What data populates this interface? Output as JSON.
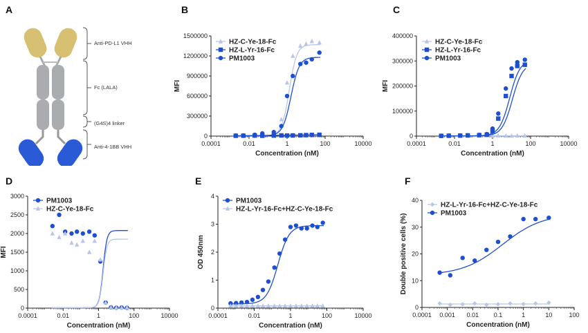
{
  "panel_letters": [
    "A",
    "B",
    "C",
    "D",
    "E",
    "F"
  ],
  "diagram": {
    "labels": [
      "Anti-PD-L1 VHH",
      "Fc (LALA)",
      "(G4S)4 linker",
      "Anti-4-1BB VHH"
    ],
    "colors": {
      "top": "#d8c073",
      "fc": "#a9adb0",
      "bottom": "#2a5ad6"
    }
  },
  "colors": {
    "light": "#b9c6e6",
    "dark": "#1f4fd1"
  },
  "chart_data": [
    {
      "panel": "B",
      "type": "line",
      "xscale": "log",
      "xlim": [
        0.0001,
        10000
      ],
      "ylim": [
        0,
        1500000
      ],
      "xticks": [
        0.0001,
        0.01,
        1,
        100,
        10000
      ],
      "xtick_labels": [
        "0.0001",
        "0.01",
        "1",
        "100",
        "10000"
      ],
      "yticks": [
        0,
        300000,
        600000,
        900000,
        1200000,
        1500000
      ],
      "ytick_labels": [
        "0",
        "300000",
        "600000",
        "900000",
        "1200000",
        "1500000"
      ],
      "xlabel": "Concentration (nM)",
      "ylabel": "MFI",
      "series": [
        {
          "name": "HZ-C-Ye-18-Fc",
          "marker": "triangle",
          "color": "light",
          "x": [
            0.002,
            0.005,
            0.02,
            0.05,
            0.2,
            0.5,
            1,
            2,
            5,
            10,
            20,
            50
          ],
          "y": [
            5000,
            8000,
            10000,
            20000,
            60000,
            250000,
            800000,
            1200000,
            1350000,
            1380000,
            1420000,
            1400000
          ],
          "fit": {
            "bottom": 5000,
            "top": 1370000,
            "ec50": 1.3,
            "hill": 2.2
          }
        },
        {
          "name": "HZ-L-Yr-16-Fc",
          "marker": "square",
          "color": "dark",
          "x": [
            0.002,
            0.005,
            0.02,
            0.05,
            0.2,
            0.5,
            1,
            2,
            5,
            10,
            20,
            50
          ],
          "y": [
            5000,
            6000,
            8000,
            5000,
            8000,
            10000,
            8000,
            10000,
            12000,
            15000,
            18000,
            20000
          ],
          "fit": null
        },
        {
          "name": "PM1003",
          "marker": "circle",
          "color": "dark",
          "x": [
            0.002,
            0.005,
            0.02,
            0.05,
            0.2,
            0.5,
            1,
            2,
            5,
            10,
            20,
            50
          ],
          "y": [
            8000,
            10000,
            20000,
            40000,
            60000,
            150000,
            600000,
            900000,
            1080000,
            1100000,
            1150000,
            1250000
          ],
          "fit": {
            "bottom": 5000,
            "top": 1180000,
            "ec50": 1.6,
            "hill": 2.0
          }
        }
      ],
      "legend_position": "top-left"
    },
    {
      "panel": "C",
      "type": "line",
      "xscale": "log",
      "xlim": [
        0.0001,
        10000
      ],
      "ylim": [
        0,
        400000
      ],
      "xticks": [
        0.0001,
        0.01,
        1,
        100,
        10000
      ],
      "xtick_labels": [
        "0.0001",
        "0.01",
        "1",
        "100",
        "10000"
      ],
      "yticks": [
        0,
        100000,
        200000,
        300000,
        400000
      ],
      "ytick_labels": [
        "0",
        "100000",
        "200000",
        "300000",
        "400000"
      ],
      "xlabel": "Concentration (nM)",
      "ylabel": "MFI",
      "series": [
        {
          "name": "HZ-C-Ye-18-Fc",
          "marker": "triangle",
          "color": "light",
          "x": [
            0.002,
            0.005,
            0.02,
            0.05,
            0.2,
            0.5,
            1,
            2,
            5,
            10,
            20,
            50
          ],
          "y": [
            1000,
            1000,
            1500,
            1000,
            1200,
            1500,
            1000,
            1500,
            1200,
            1000,
            1500,
            1200
          ],
          "fit": null
        },
        {
          "name": "HZ-L-Yr-16-Fc",
          "marker": "square",
          "color": "dark",
          "x": [
            0.002,
            0.005,
            0.02,
            0.05,
            0.2,
            0.5,
            1,
            2,
            5,
            10,
            20,
            50
          ],
          "y": [
            1000,
            1500,
            2000,
            3000,
            4000,
            6000,
            20000,
            70000,
            160000,
            240000,
            280000,
            285000
          ],
          "fit": {
            "bottom": 1000,
            "top": 290000,
            "ec50": 11,
            "hill": 1.6
          }
        },
        {
          "name": "PM1003",
          "marker": "circle",
          "color": "dark",
          "x": [
            0.002,
            0.005,
            0.02,
            0.05,
            0.2,
            0.5,
            1,
            2,
            5,
            10,
            20,
            50
          ],
          "y": [
            1000,
            1500,
            2000,
            3000,
            5000,
            8000,
            30000,
            90000,
            190000,
            270000,
            295000,
            305000
          ],
          "fit": {
            "bottom": 1000,
            "top": 305000,
            "ec50": 8,
            "hill": 1.6
          }
        }
      ],
      "legend_position": "top-left"
    },
    {
      "panel": "D",
      "type": "line",
      "xscale": "log",
      "xlim": [
        0.0001,
        10000
      ],
      "ylim": [
        0,
        3000
      ],
      "xticks": [
        0.0001,
        0.01,
        1,
        100,
        10000
      ],
      "xtick_labels": [
        "0.0001",
        "0.01",
        "1",
        "100",
        "10000"
      ],
      "yticks": [
        0,
        500,
        1000,
        1500,
        2000,
        2500,
        3000
      ],
      "ytick_labels": [
        "0",
        "500",
        "1000",
        "1500",
        "2000",
        "2500",
        "3000"
      ],
      "xlabel": "Concentration (nM)",
      "ylabel": "MFI",
      "series": [
        {
          "name": "PM1003",
          "marker": "circle",
          "color": "dark",
          "x": [
            0.0025,
            0.006,
            0.013,
            0.03,
            0.06,
            0.13,
            0.3,
            0.6,
            1.25,
            2.5,
            5,
            10,
            20,
            40
          ],
          "y": [
            2200,
            2500,
            2050,
            2000,
            2050,
            2000,
            2050,
            1950,
            1250,
            150,
            20,
            10,
            15,
            10
          ],
          "fit": {
            "bottom": 10,
            "top": 2080,
            "ec50": 1.8,
            "hill": 4
          }
        },
        {
          "name": "HZ-C-Ye-18-Fc",
          "marker": "triangle",
          "color": "light",
          "x": [
            0.0025,
            0.006,
            0.013,
            0.03,
            0.06,
            0.13,
            0.3,
            0.6,
            1.25,
            2.5,
            5,
            10,
            20,
            40
          ],
          "y": [
            2000,
            1900,
            2000,
            1750,
            1700,
            1800,
            1500,
            1800,
            1300,
            150,
            20,
            10,
            10,
            15
          ],
          "fit": {
            "bottom": 10,
            "top": 1850,
            "ec50": 1.8,
            "hill": 4
          }
        }
      ],
      "legend_position": "top-left"
    },
    {
      "panel": "E",
      "type": "line",
      "xscale": "log",
      "xlim": [
        0.0001,
        10000
      ],
      "ylim": [
        0,
        4
      ],
      "xticks": [
        0.0001,
        0.01,
        1,
        100,
        10000
      ],
      "xtick_labels": [
        "0.0001",
        "0.01",
        "1",
        "100",
        "10000"
      ],
      "yticks": [
        0,
        1,
        2,
        3,
        4
      ],
      "ytick_labels": [
        "0",
        "1",
        "2",
        "3",
        "4"
      ],
      "xlabel": "Concentration (nM)",
      "ylabel": "OD 450nm",
      "series": [
        {
          "name": "PM1003",
          "marker": "circle",
          "color": "dark",
          "x": [
            0.0005,
            0.001,
            0.002,
            0.004,
            0.008,
            0.016,
            0.03,
            0.06,
            0.13,
            0.25,
            0.5,
            1,
            2,
            4,
            8,
            16,
            30,
            60
          ],
          "y": [
            0.17,
            0.18,
            0.2,
            0.22,
            0.3,
            0.4,
            0.65,
            0.95,
            1.45,
            1.95,
            2.45,
            2.9,
            2.95,
            2.85,
            2.85,
            2.95,
            2.9,
            3.05
          ],
          "fit": {
            "bottom": 0.15,
            "top": 2.95,
            "ec50": 0.2,
            "hill": 1.4
          }
        },
        {
          "name": "HZ-L-Yr-16-Fc+HZ-C-Ye-18-Fc",
          "marker": "triangle",
          "color": "light",
          "x": [
            0.0005,
            0.001,
            0.002,
            0.004,
            0.008,
            0.016,
            0.03,
            0.06,
            0.13,
            0.25,
            0.5,
            1,
            2,
            4,
            8,
            16,
            30,
            60
          ],
          "y": [
            0.08,
            0.08,
            0.08,
            0.08,
            0.08,
            0.08,
            0.08,
            0.08,
            0.08,
            0.08,
            0.08,
            0.08,
            0.08,
            0.08,
            0.08,
            0.08,
            0.08,
            0.08
          ],
          "fit": {
            "bottom": 0.08,
            "top": 0.08,
            "ec50": 1,
            "hill": 1
          }
        }
      ],
      "legend_position": "top-left"
    },
    {
      "panel": "F",
      "type": "line",
      "xscale": "log",
      "xlim": [
        0.0001,
        100
      ],
      "ylim": [
        0,
        40
      ],
      "xticks": [
        0.0001,
        0.001,
        0.01,
        0.1,
        1,
        10,
        100
      ],
      "xtick_labels": [
        "0.0001",
        "0.001",
        "0.01",
        "0.1",
        "1",
        "10",
        "100"
      ],
      "yticks": [
        0,
        10,
        20,
        30,
        40
      ],
      "ytick_labels": [
        "0",
        "10",
        "20",
        "30",
        "40"
      ],
      "xlabel": "Concentration (nM)",
      "ylabel": "Double positive cells (%)",
      "series": [
        {
          "name": "HZ-L-Yr-16-Fc+HZ-C-Ye-18-Fc",
          "marker": "diamond",
          "color": "light",
          "x": [
            0.0005,
            0.0013,
            0.004,
            0.012,
            0.035,
            0.1,
            0.3,
            1,
            3,
            10
          ],
          "y": [
            1.5,
            1,
            1.2,
            1.5,
            1,
            1.2,
            1.5,
            1.3,
            1.5,
            1.8
          ],
          "fit": {
            "bottom": 1.3,
            "top": 1.3,
            "ec50": 1,
            "hill": 1
          }
        },
        {
          "name": "PM1003",
          "marker": "circle",
          "color": "dark",
          "x": [
            0.0005,
            0.0013,
            0.004,
            0.012,
            0.035,
            0.1,
            0.3,
            1,
            3,
            10
          ],
          "y": [
            13,
            12,
            18.5,
            17.5,
            21.5,
            24.5,
            26.5,
            33,
            33,
            33.5
          ],
          "fit": {
            "bottom": 12,
            "top": 35,
            "ec50": 0.15,
            "hill": 0.55
          }
        }
      ],
      "legend_position": "top-left"
    }
  ]
}
